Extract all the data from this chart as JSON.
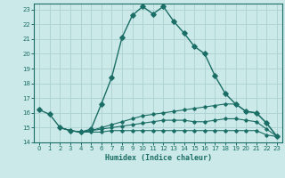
{
  "xlabel": "Humidex (Indice chaleur)",
  "xlim": [
    -0.5,
    23.5
  ],
  "ylim": [
    14,
    23.4
  ],
  "yticks": [
    14,
    15,
    16,
    17,
    18,
    19,
    20,
    21,
    22,
    23
  ],
  "xticks": [
    0,
    1,
    2,
    3,
    4,
    5,
    6,
    7,
    8,
    9,
    10,
    11,
    12,
    13,
    14,
    15,
    16,
    17,
    18,
    19,
    20,
    21,
    22,
    23
  ],
  "bg_color": "#cce9e9",
  "line_color": "#1a6e65",
  "grid_color": "#b0d4d4",
  "lines": [
    {
      "x": [
        0,
        1,
        2,
        3,
        4,
        5,
        6,
        7,
        8,
        9,
        10,
        11,
        12,
        13,
        14,
        15,
        16,
        17,
        18,
        19,
        20,
        21,
        22,
        23
      ],
      "y": [
        16.2,
        15.9,
        15.0,
        14.8,
        14.7,
        14.9,
        16.6,
        18.4,
        21.1,
        22.6,
        23.2,
        22.7,
        23.2,
        22.2,
        21.4,
        20.5,
        20.0,
        18.5,
        17.3,
        16.6,
        16.1,
        16.0,
        15.3,
        14.4
      ]
    },
    {
      "x": [
        2,
        3,
        4,
        5,
        6,
        7,
        8,
        9,
        10,
        11,
        12,
        13,
        14,
        15,
        16,
        17,
        18,
        19,
        20,
        21,
        22,
        23
      ],
      "y": [
        15.0,
        14.8,
        14.7,
        14.8,
        15.0,
        15.2,
        15.4,
        15.6,
        15.8,
        15.9,
        16.0,
        16.1,
        16.2,
        16.3,
        16.4,
        16.5,
        16.6,
        16.6,
        16.1,
        16.0,
        15.3,
        14.4
      ]
    },
    {
      "x": [
        2,
        3,
        4,
        5,
        6,
        7,
        8,
        9,
        10,
        11,
        12,
        13,
        14,
        15,
        16,
        17,
        18,
        19,
        20,
        21,
        22,
        23
      ],
      "y": [
        15.0,
        14.8,
        14.7,
        14.8,
        14.9,
        15.0,
        15.1,
        15.2,
        15.3,
        15.4,
        15.5,
        15.5,
        15.5,
        15.4,
        15.4,
        15.5,
        15.6,
        15.6,
        15.5,
        15.4,
        14.9,
        14.4
      ]
    },
    {
      "x": [
        2,
        3,
        4,
        5,
        6,
        7,
        8,
        9,
        10,
        11,
        12,
        13,
        14,
        15,
        16,
        17,
        18,
        19,
        20,
        21,
        22,
        23
      ],
      "y": [
        15.0,
        14.8,
        14.7,
        14.7,
        14.7,
        14.8,
        14.8,
        14.8,
        14.8,
        14.8,
        14.8,
        14.8,
        14.8,
        14.8,
        14.8,
        14.8,
        14.8,
        14.8,
        14.8,
        14.8,
        14.5,
        14.4
      ]
    }
  ]
}
